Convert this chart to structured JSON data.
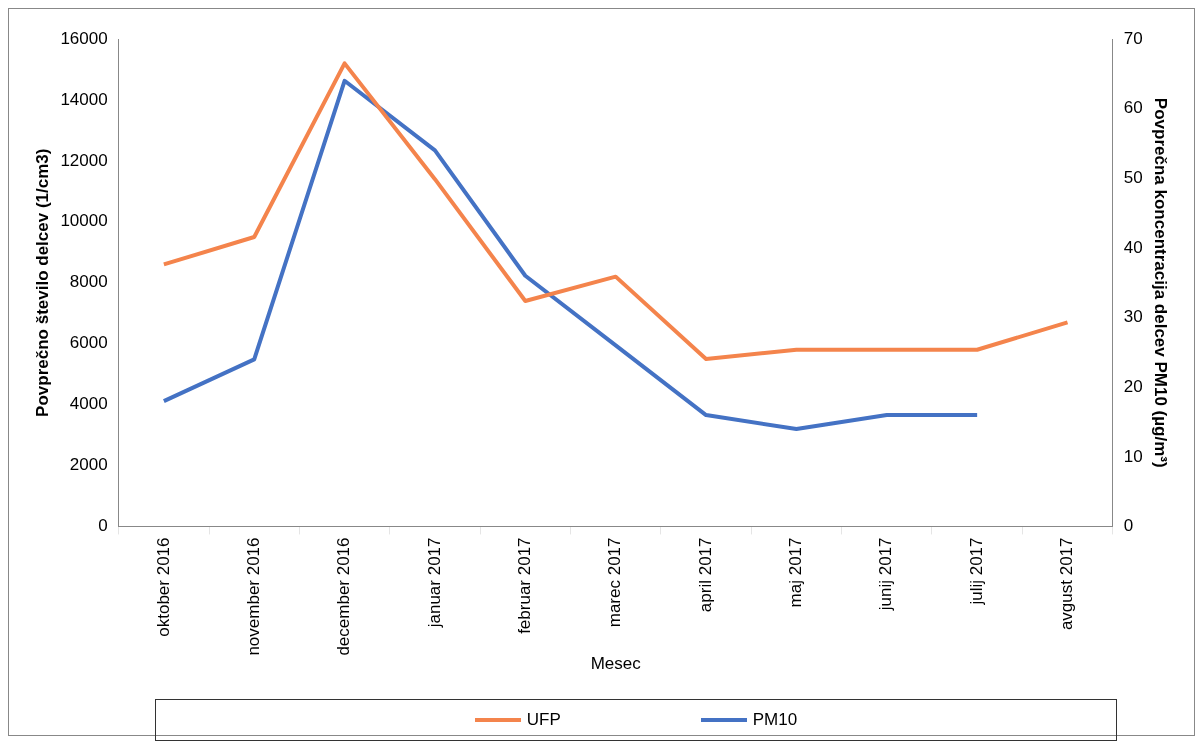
{
  "chart_data": {
    "type": "line",
    "xlabel": "Mesec",
    "ylabel": "Povprečno število delcev (1/cm3)",
    "y2label": "Povprečna koncentracija delcev PM10 (µg/m³)",
    "categories": [
      "oktober 2016",
      "november 2016",
      "december 2016",
      "januar 2017",
      "februar 2017",
      "marec 2017",
      "april 2017",
      "maj 2017",
      "junij 2017",
      "julij 2017",
      "avgust 2017"
    ],
    "series": [
      {
        "name": "UFP",
        "color": "#f4844c",
        "values": [
          8600,
          9500,
          15200,
          11400,
          7400,
          8200,
          5500,
          5800,
          5800,
          5800,
          6700
        ]
      },
      {
        "name": "PM10",
        "color": "#4472c4",
        "axis": "y2",
        "values": [
          18,
          24,
          64,
          54,
          36,
          26,
          16,
          14,
          16,
          16,
          null
        ]
      }
    ],
    "ylim": [
      0,
      16000
    ],
    "yticks": [
      0,
      2000,
      4000,
      6000,
      8000,
      10000,
      12000,
      14000,
      16000
    ],
    "y2lim": [
      0,
      70
    ],
    "y2ticks": [
      0,
      10,
      20,
      30,
      40,
      50,
      60,
      70
    ],
    "grid": false,
    "legend": "bottom",
    "marker": "none",
    "line_style": "solid"
  }
}
